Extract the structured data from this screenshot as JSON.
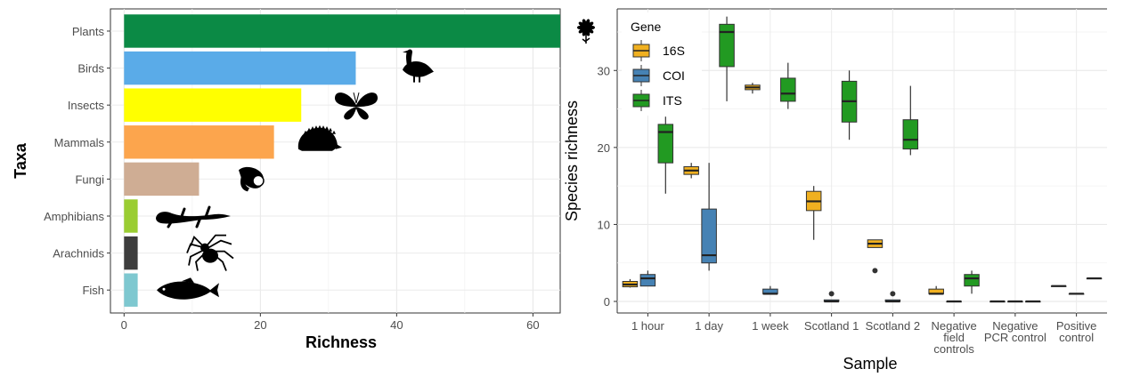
{
  "chart_data": [
    {
      "type": "bar",
      "orientation": "horizontal",
      "title": "",
      "xlabel": "Richness",
      "ylabel": "Taxa",
      "categories": [
        "Plants",
        "Birds",
        "Insects",
        "Mammals",
        "Fungi",
        "Amphibians",
        "Arachnids",
        "Fish"
      ],
      "values": [
        64,
        34,
        26,
        22,
        11,
        2,
        2,
        2
      ],
      "colors": [
        "#0b8a45",
        "#5aabe8",
        "#ffff00",
        "#fca54d",
        "#cfad94",
        "#9acd32",
        "#3d3d3d",
        "#7ec8d0"
      ],
      "icons": [
        "flower-icon",
        "goose-icon",
        "butterfly-icon",
        "hedgehog-icon",
        "mushroom-icon",
        "newt-icon",
        "spider-icon",
        "fish-icon"
      ],
      "xlim": [
        -2,
        64
      ],
      "xticks": [
        0,
        20,
        40,
        60
      ],
      "grid": true
    },
    {
      "type": "boxplot",
      "title": "",
      "xlabel": "Sample",
      "ylabel": "Species richness",
      "categories": [
        "1 hour",
        "1 day",
        "1 week",
        "Scotland 1",
        "Scotland 2",
        "Negative field controls",
        "Negative PCR control",
        "Positive control"
      ],
      "category_labels": [
        [
          "1 hour"
        ],
        [
          "1 day"
        ],
        [
          "1 week"
        ],
        [
          "Scotland 1"
        ],
        [
          "Scotland 2"
        ],
        [
          "Negative",
          "field",
          "controls"
        ],
        [
          "Negative",
          "PCR control"
        ],
        [
          "Positive",
          "control"
        ]
      ],
      "legend_title": "Gene",
      "legend_position": "top-left",
      "ylim": [
        -1.5,
        38
      ],
      "yticks": [
        0,
        10,
        20,
        30
      ],
      "grid": true,
      "series": [
        {
          "name": "16S",
          "color": "#f0b020",
          "boxes": [
            {
              "category": "1 hour",
              "min": 1.8,
              "q1": 1.9,
              "median": 2.2,
              "q3": 2.6,
              "max": 2.9,
              "outliers": []
            },
            {
              "category": "1 day",
              "min": 16,
              "q1": 16.5,
              "median": 17,
              "q3": 17.5,
              "max": 18,
              "outliers": []
            },
            {
              "category": "1 week",
              "min": 27,
              "q1": 27.5,
              "median": 27.8,
              "q3": 28.1,
              "max": 28.4,
              "outliers": []
            },
            {
              "category": "Scotland 1",
              "min": 8,
              "q1": 11.8,
              "median": 13,
              "q3": 14.3,
              "max": 15,
              "outliers": []
            },
            {
              "category": "Scotland 2",
              "min": 7,
              "q1": 7,
              "median": 7.5,
              "q3": 8,
              "max": 8,
              "outliers": [
                4
              ]
            },
            {
              "category": "Negative field controls",
              "min": 1,
              "q1": 1,
              "median": 1,
              "q3": 1.6,
              "max": 2,
              "outliers": []
            },
            {
              "category": "Negative PCR control",
              "min": 0,
              "q1": 0,
              "median": 0,
              "q3": 0,
              "max": 0,
              "outliers": []
            },
            {
              "category": "Positive control",
              "min": 2,
              "q1": 2,
              "median": 2,
              "q3": 2,
              "max": 2,
              "outliers": []
            }
          ]
        },
        {
          "name": "COI",
          "color": "#4682b4",
          "boxes": [
            {
              "category": "1 hour",
              "min": 2,
              "q1": 2,
              "median": 3,
              "q3": 3.5,
              "max": 4,
              "outliers": []
            },
            {
              "category": "1 day",
              "min": 4,
              "q1": 5,
              "median": 6,
              "q3": 12,
              "max": 18,
              "outliers": []
            },
            {
              "category": "1 week",
              "min": 1,
              "q1": 1,
              "median": 1,
              "q3": 1.6,
              "max": 2,
              "outliers": []
            },
            {
              "category": "Scotland 1",
              "min": 0,
              "q1": 0,
              "median": 0,
              "q3": 0.2,
              "max": 0.2,
              "outliers": [
                1
              ]
            },
            {
              "category": "Scotland 2",
              "min": 0,
              "q1": 0,
              "median": 0,
              "q3": 0.2,
              "max": 0.2,
              "outliers": [
                1
              ]
            },
            {
              "category": "Negative field controls",
              "min": 0,
              "q1": 0,
              "median": 0,
              "q3": 0,
              "max": 0,
              "outliers": []
            },
            {
              "category": "Negative PCR control",
              "min": 0,
              "q1": 0,
              "median": 0,
              "q3": 0,
              "max": 0,
              "outliers": []
            },
            {
              "category": "Positive control",
              "min": 1,
              "q1": 1,
              "median": 1,
              "q3": 1,
              "max": 1,
              "outliers": []
            }
          ]
        },
        {
          "name": "ITS",
          "color": "#229a22",
          "boxes": [
            {
              "category": "1 hour",
              "min": 14,
              "q1": 18,
              "median": 22,
              "q3": 23,
              "max": 24,
              "outliers": []
            },
            {
              "category": "1 day",
              "min": 26,
              "q1": 30.5,
              "median": 35,
              "q3": 36,
              "max": 37,
              "outliers": []
            },
            {
              "category": "1 week",
              "min": 25,
              "q1": 26,
              "median": 27,
              "q3": 29,
              "max": 31,
              "outliers": []
            },
            {
              "category": "Scotland 1",
              "min": 21,
              "q1": 23.3,
              "median": 26,
              "q3": 28.6,
              "max": 30,
              "outliers": []
            },
            {
              "category": "Scotland 2",
              "min": 19,
              "q1": 19.8,
              "median": 21,
              "q3": 23.6,
              "max": 28,
              "outliers": []
            },
            {
              "category": "Negative field controls",
              "min": 1,
              "q1": 2,
              "median": 3,
              "q3": 3.5,
              "max": 4,
              "outliers": []
            },
            {
              "category": "Negative PCR control",
              "min": 0,
              "q1": 0,
              "median": 0,
              "q3": 0,
              "max": 0,
              "outliers": []
            },
            {
              "category": "Positive control",
              "min": 3,
              "q1": 3,
              "median": 3,
              "q3": 3,
              "max": 3,
              "outliers": []
            }
          ]
        }
      ]
    }
  ]
}
